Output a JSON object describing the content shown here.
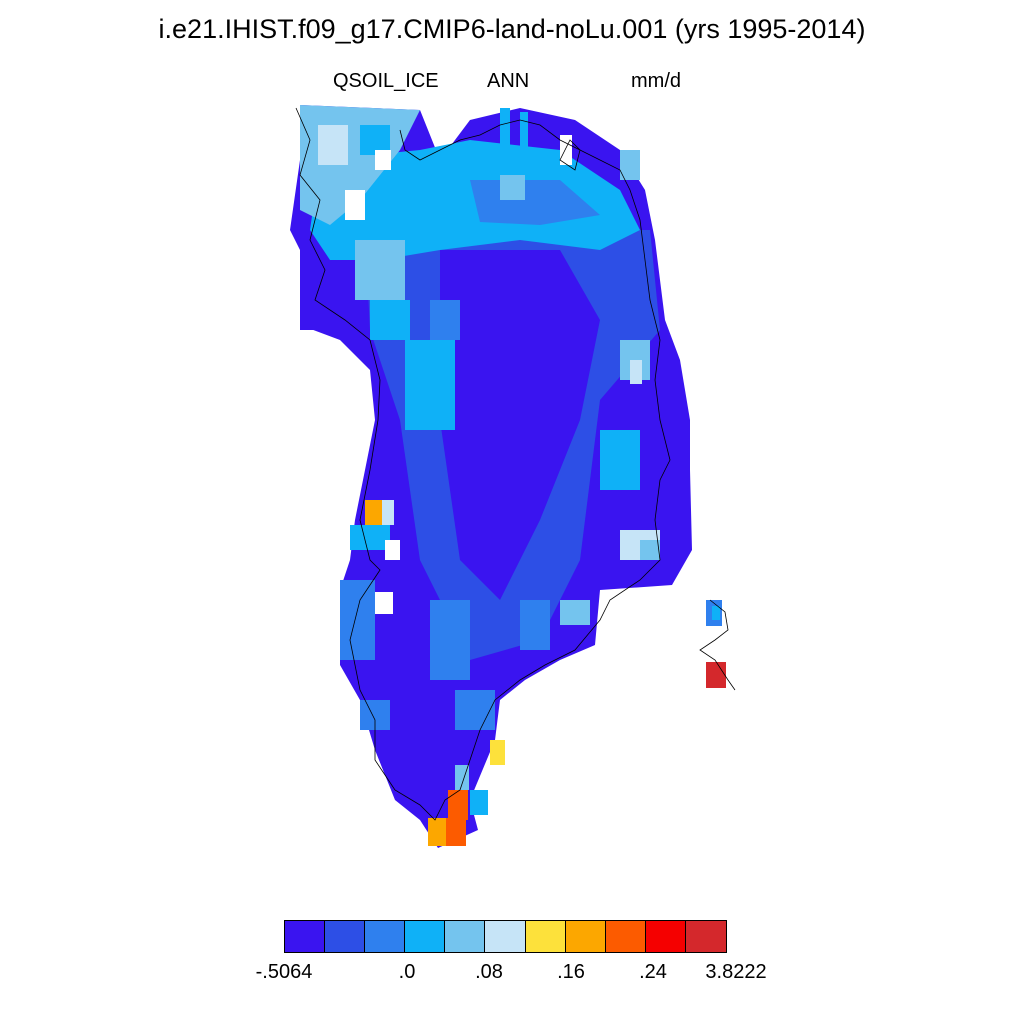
{
  "title": "i.e21.IHIST.f09_g17.CMIP6-land-noLu.001 (yrs 1995-2014)",
  "left_label": "QSOIL_ICE",
  "center_label": "ANN",
  "right_label": "mm/d",
  "colorbar": {
    "colors": [
      "#3a14f0",
      "#2d4fe6",
      "#2f80ee",
      "#0fb1f7",
      "#74c4ee",
      "#c6e4f7",
      "#fde13b",
      "#fca700",
      "#fc5b00",
      "#f50000",
      "#d4282c"
    ],
    "tick_labels": [
      "-.5064",
      ".0",
      ".08",
      ".16",
      ".24",
      "3.8222"
    ],
    "tick_values": [
      -0.5064,
      0.0,
      0.08,
      0.16,
      0.24,
      3.8222
    ]
  },
  "map": {
    "region": "Greenland",
    "variable": "QSOIL_ICE",
    "units": "mm/d",
    "season": "ANN"
  }
}
